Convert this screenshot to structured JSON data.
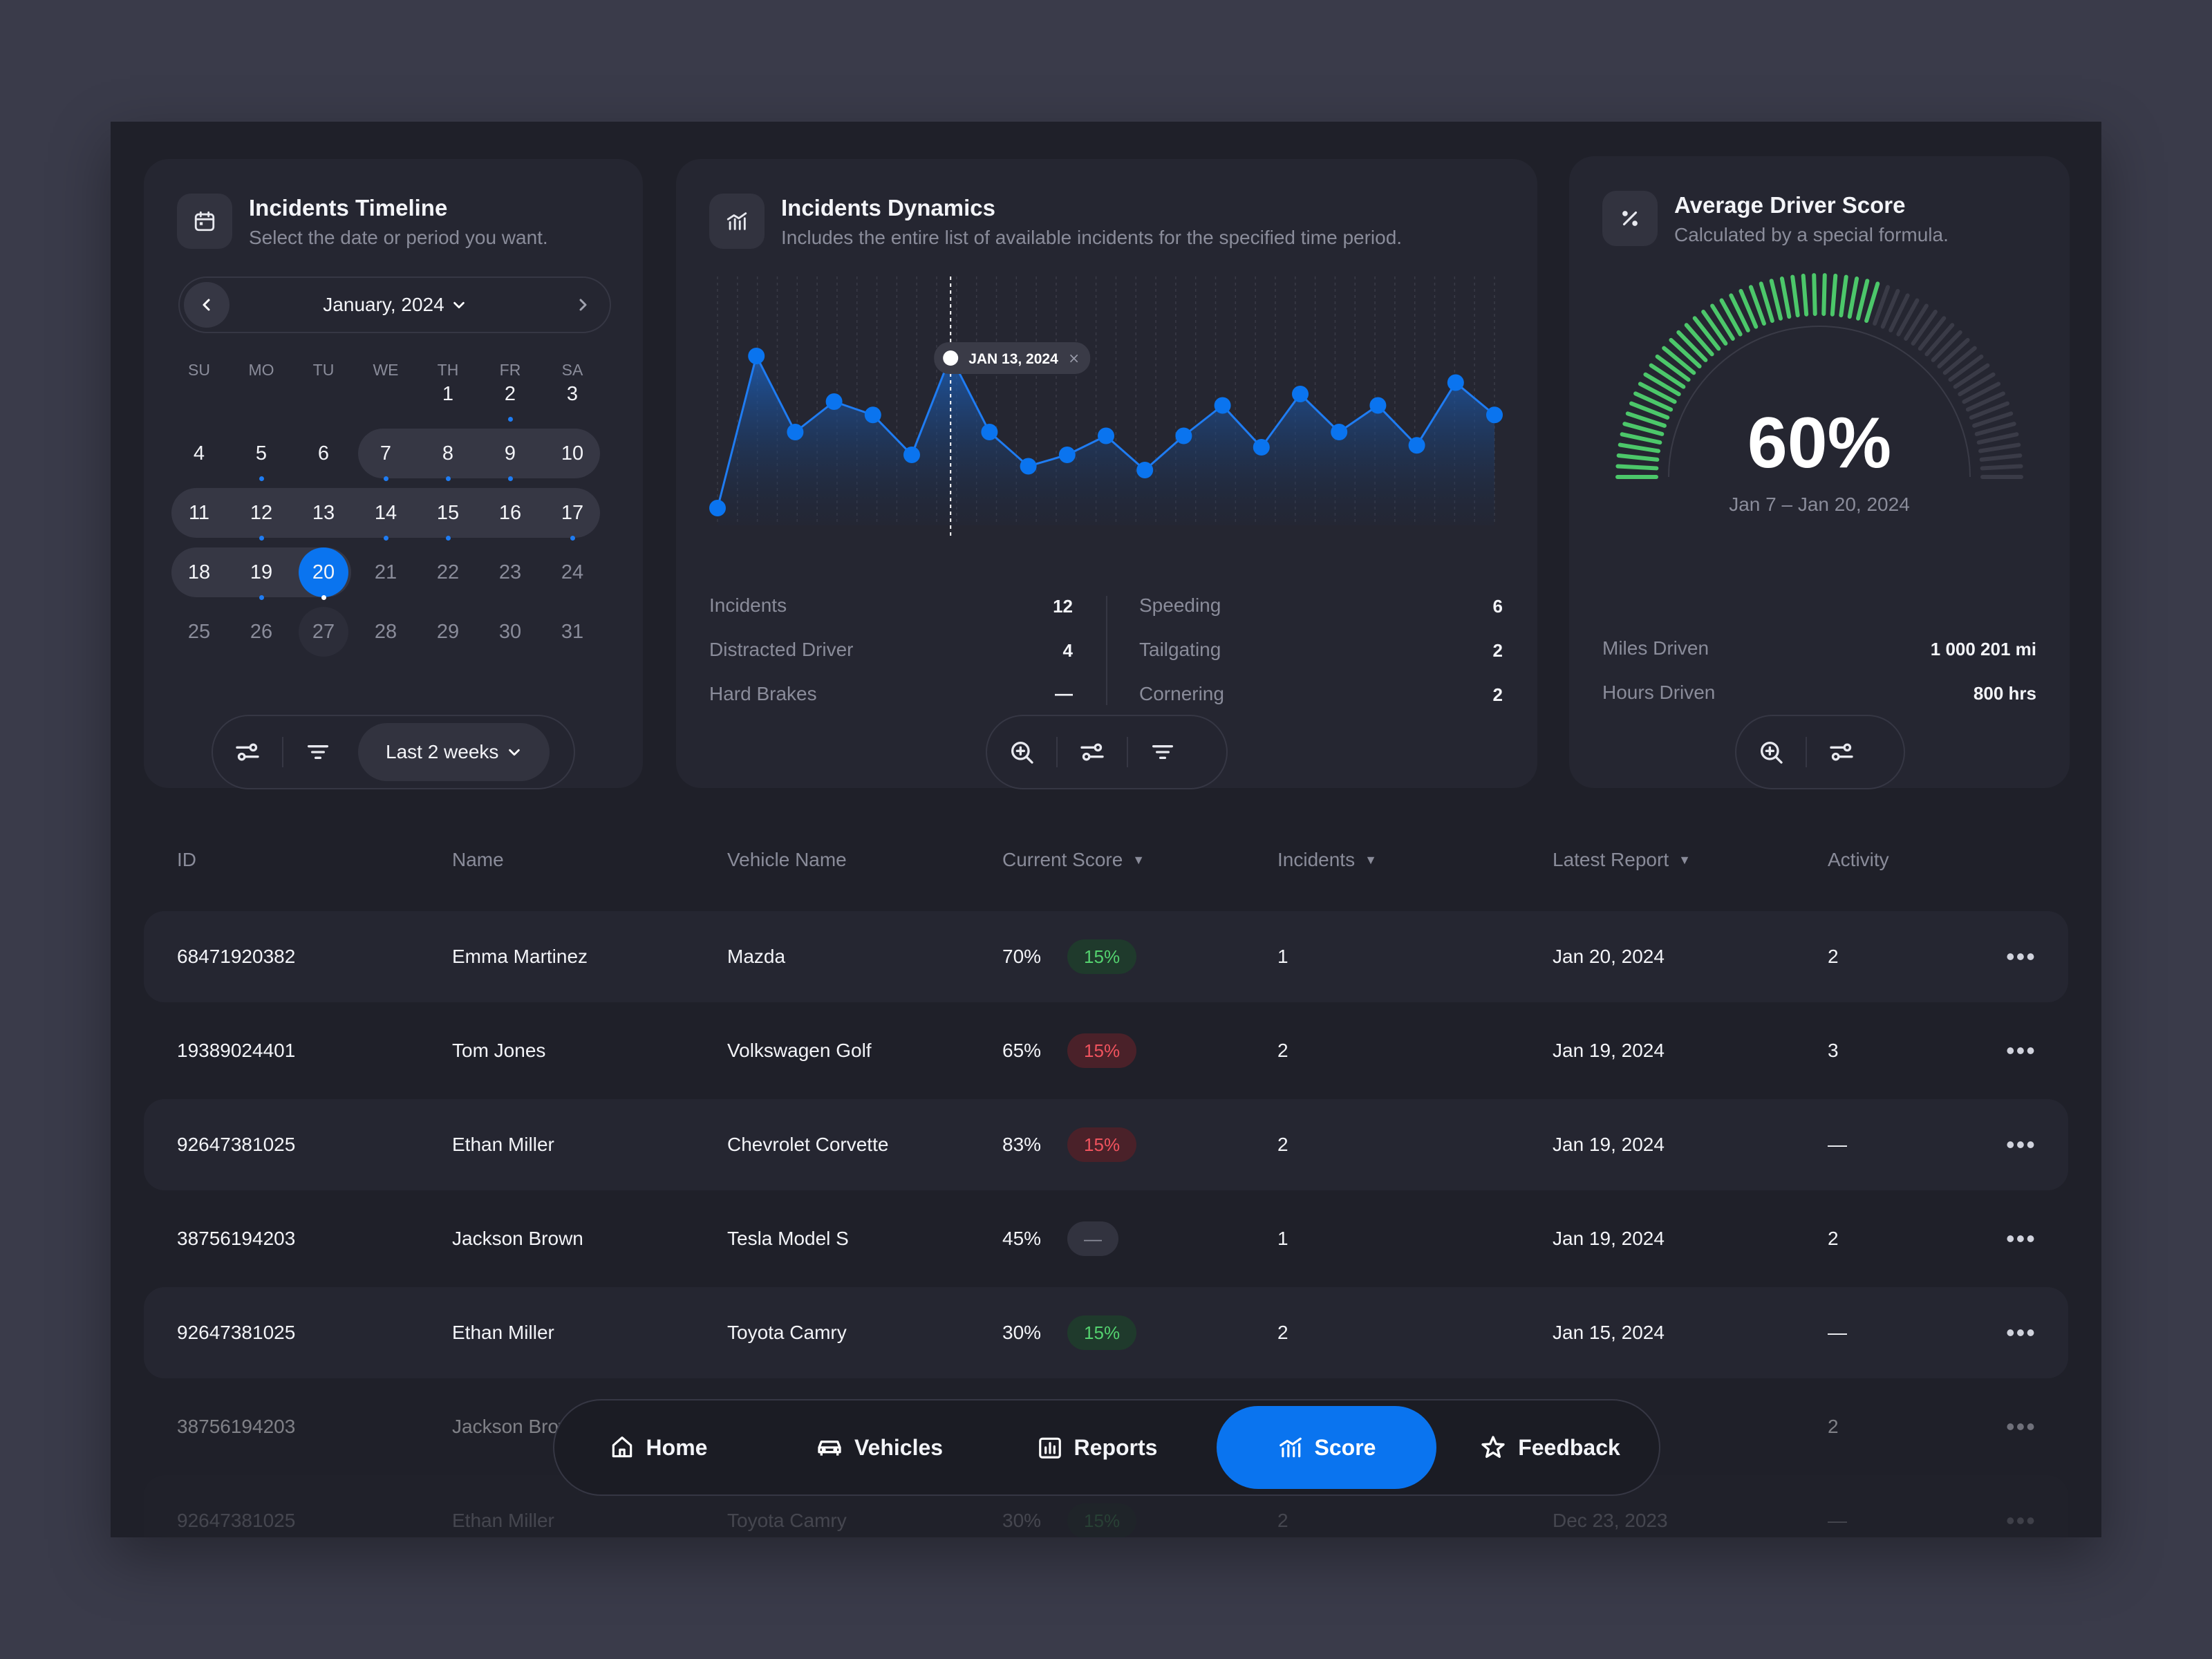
{
  "timeline": {
    "title": "Incidents Timeline",
    "subtitle": "Select the date or period you want.",
    "month_label": "January, 2024",
    "weekdays": [
      "SU",
      "MO",
      "TU",
      "WE",
      "TH",
      "FR",
      "SA"
    ],
    "period_label": "Last 2 weeks",
    "days": [
      {
        "d": "1",
        "state": "normal",
        "dot": false
      },
      {
        "d": "2",
        "state": "normal",
        "dot": true
      },
      {
        "d": "3",
        "state": "normal",
        "dot": false
      },
      {
        "d": "4",
        "state": "normal",
        "dot": false
      },
      {
        "d": "5",
        "state": "normal",
        "dot": true
      },
      {
        "d": "6",
        "state": "normal",
        "dot": false
      },
      {
        "d": "7",
        "state": "range",
        "dot": true
      },
      {
        "d": "8",
        "state": "range",
        "dot": true
      },
      {
        "d": "9",
        "state": "range",
        "dot": true
      },
      {
        "d": "10",
        "state": "range",
        "dot": false
      },
      {
        "d": "11",
        "state": "range",
        "dot": false
      },
      {
        "d": "12",
        "state": "range",
        "dot": true
      },
      {
        "d": "13",
        "state": "range",
        "dot": false
      },
      {
        "d": "14",
        "state": "range",
        "dot": true
      },
      {
        "d": "15",
        "state": "range",
        "dot": true
      },
      {
        "d": "16",
        "state": "range",
        "dot": false
      },
      {
        "d": "17",
        "state": "range",
        "dot": true
      },
      {
        "d": "18",
        "state": "range",
        "dot": false
      },
      {
        "d": "19",
        "state": "range",
        "dot": true
      },
      {
        "d": "20",
        "state": "selected",
        "dot": true
      },
      {
        "d": "21",
        "state": "dim",
        "dot": false
      },
      {
        "d": "22",
        "state": "dim",
        "dot": false
      },
      {
        "d": "23",
        "state": "dim",
        "dot": false
      },
      {
        "d": "24",
        "state": "dim",
        "dot": false
      },
      {
        "d": "25",
        "state": "dim",
        "dot": false
      },
      {
        "d": "26",
        "state": "dim",
        "dot": false
      },
      {
        "d": "27",
        "state": "today",
        "dot": false
      },
      {
        "d": "28",
        "state": "dim",
        "dot": false
      },
      {
        "d": "29",
        "state": "dim",
        "dot": false
      },
      {
        "d": "30",
        "state": "dim",
        "dot": false
      },
      {
        "d": "31",
        "state": "dim",
        "dot": false
      }
    ]
  },
  "dynamics": {
    "title": "Incidents Dynamics",
    "subtitle": "Includes the entire list of available incidents for the specified time period.",
    "tooltip_label": "JAN 13, 2024",
    "stats_left": [
      {
        "label": "Incidents",
        "value": "12"
      },
      {
        "label": "Distracted Driver",
        "value": "4"
      },
      {
        "label": "Hard Brakes",
        "value": "—"
      }
    ],
    "stats_right": [
      {
        "label": "Speeding",
        "value": "6"
      },
      {
        "label": "Tailgating",
        "value": "2"
      },
      {
        "label": "Cornering",
        "value": "2"
      }
    ]
  },
  "chart_data": {
    "type": "area",
    "title": "",
    "xlabel": "",
    "ylabel": "",
    "highlight_index": 6,
    "values": [
      2,
      10,
      6,
      7.6,
      6.9,
      4.8,
      10,
      6,
      4.2,
      4.8,
      5.8,
      4,
      5.8,
      7.4,
      5.2,
      8,
      6,
      7.4,
      5.3,
      8.6,
      6.9
    ]
  },
  "score": {
    "title": "Average Driver Score",
    "subtitle": "Calculated by a special formula.",
    "percent_label": "60%",
    "percent_value": 0.6,
    "range_label": "Jan 7 – Jan 20, 2024",
    "stats": [
      {
        "label": "Miles Driven",
        "value": "1 000 201 mi"
      },
      {
        "label": "Hours Driven",
        "value": "800 hrs"
      }
    ],
    "colors": {
      "good": "#4cc76a",
      "rest": "#3a3b47"
    }
  },
  "table": {
    "headers": {
      "id": "ID",
      "name": "Name",
      "vehicle": "Vehicle Name",
      "score": "Current Score",
      "incidents": "Incidents",
      "latest": "Latest Report",
      "activity": "Activity"
    },
    "rows": [
      {
        "id": "68471920382",
        "name": "Emma Martinez",
        "vehicle": "Mazda",
        "score": "70%",
        "delta": "15%",
        "trend": "up",
        "incidents": "1",
        "latest": "Jan 20, 2024",
        "activity": "2"
      },
      {
        "id": "19389024401",
        "name": "Tom Jones",
        "vehicle": "Volkswagen Golf",
        "score": "65%",
        "delta": "15%",
        "trend": "down",
        "incidents": "2",
        "latest": "Jan 19, 2024",
        "activity": "3"
      },
      {
        "id": "92647381025",
        "name": "Ethan Miller",
        "vehicle": "Chevrolet Corvette",
        "score": "83%",
        "delta": "15%",
        "trend": "down",
        "incidents": "2",
        "latest": "Jan 19, 2024",
        "activity": "—"
      },
      {
        "id": "38756194203",
        "name": "Jackson Brown",
        "vehicle": "Tesla Model S",
        "score": "45%",
        "delta": "—",
        "trend": "neutral",
        "incidents": "1",
        "latest": "Jan 19, 2024",
        "activity": "2"
      },
      {
        "id": "92647381025",
        "name": "Ethan Miller",
        "vehicle": "Toyota Camry",
        "score": "30%",
        "delta": "15%",
        "trend": "up",
        "incidents": "2",
        "latest": "Jan 15, 2024",
        "activity": "—"
      },
      {
        "id": "38756194203",
        "name": "Jackson Brown",
        "vehicle": "",
        "score": "",
        "delta": "",
        "trend": "none",
        "incidents": "",
        "latest": "",
        "activity": "2"
      },
      {
        "id": "92647381025",
        "name": "Ethan Miller",
        "vehicle": "Toyota Camry",
        "score": "30%",
        "delta": "15%",
        "trend": "up",
        "incidents": "2",
        "latest": "Dec 23, 2023",
        "activity": "—"
      }
    ]
  },
  "nav": {
    "items": [
      {
        "label": "Home",
        "icon": "home-icon"
      },
      {
        "label": "Vehicles",
        "icon": "car-icon"
      },
      {
        "label": "Reports",
        "icon": "reports-icon"
      },
      {
        "label": "Score",
        "icon": "score-icon"
      },
      {
        "label": "Feedback",
        "icon": "star-icon"
      }
    ],
    "active": "Score"
  },
  "colors": {
    "accent": "#0a74ef",
    "positive": "#54d26f",
    "negative": "#f0535e"
  }
}
